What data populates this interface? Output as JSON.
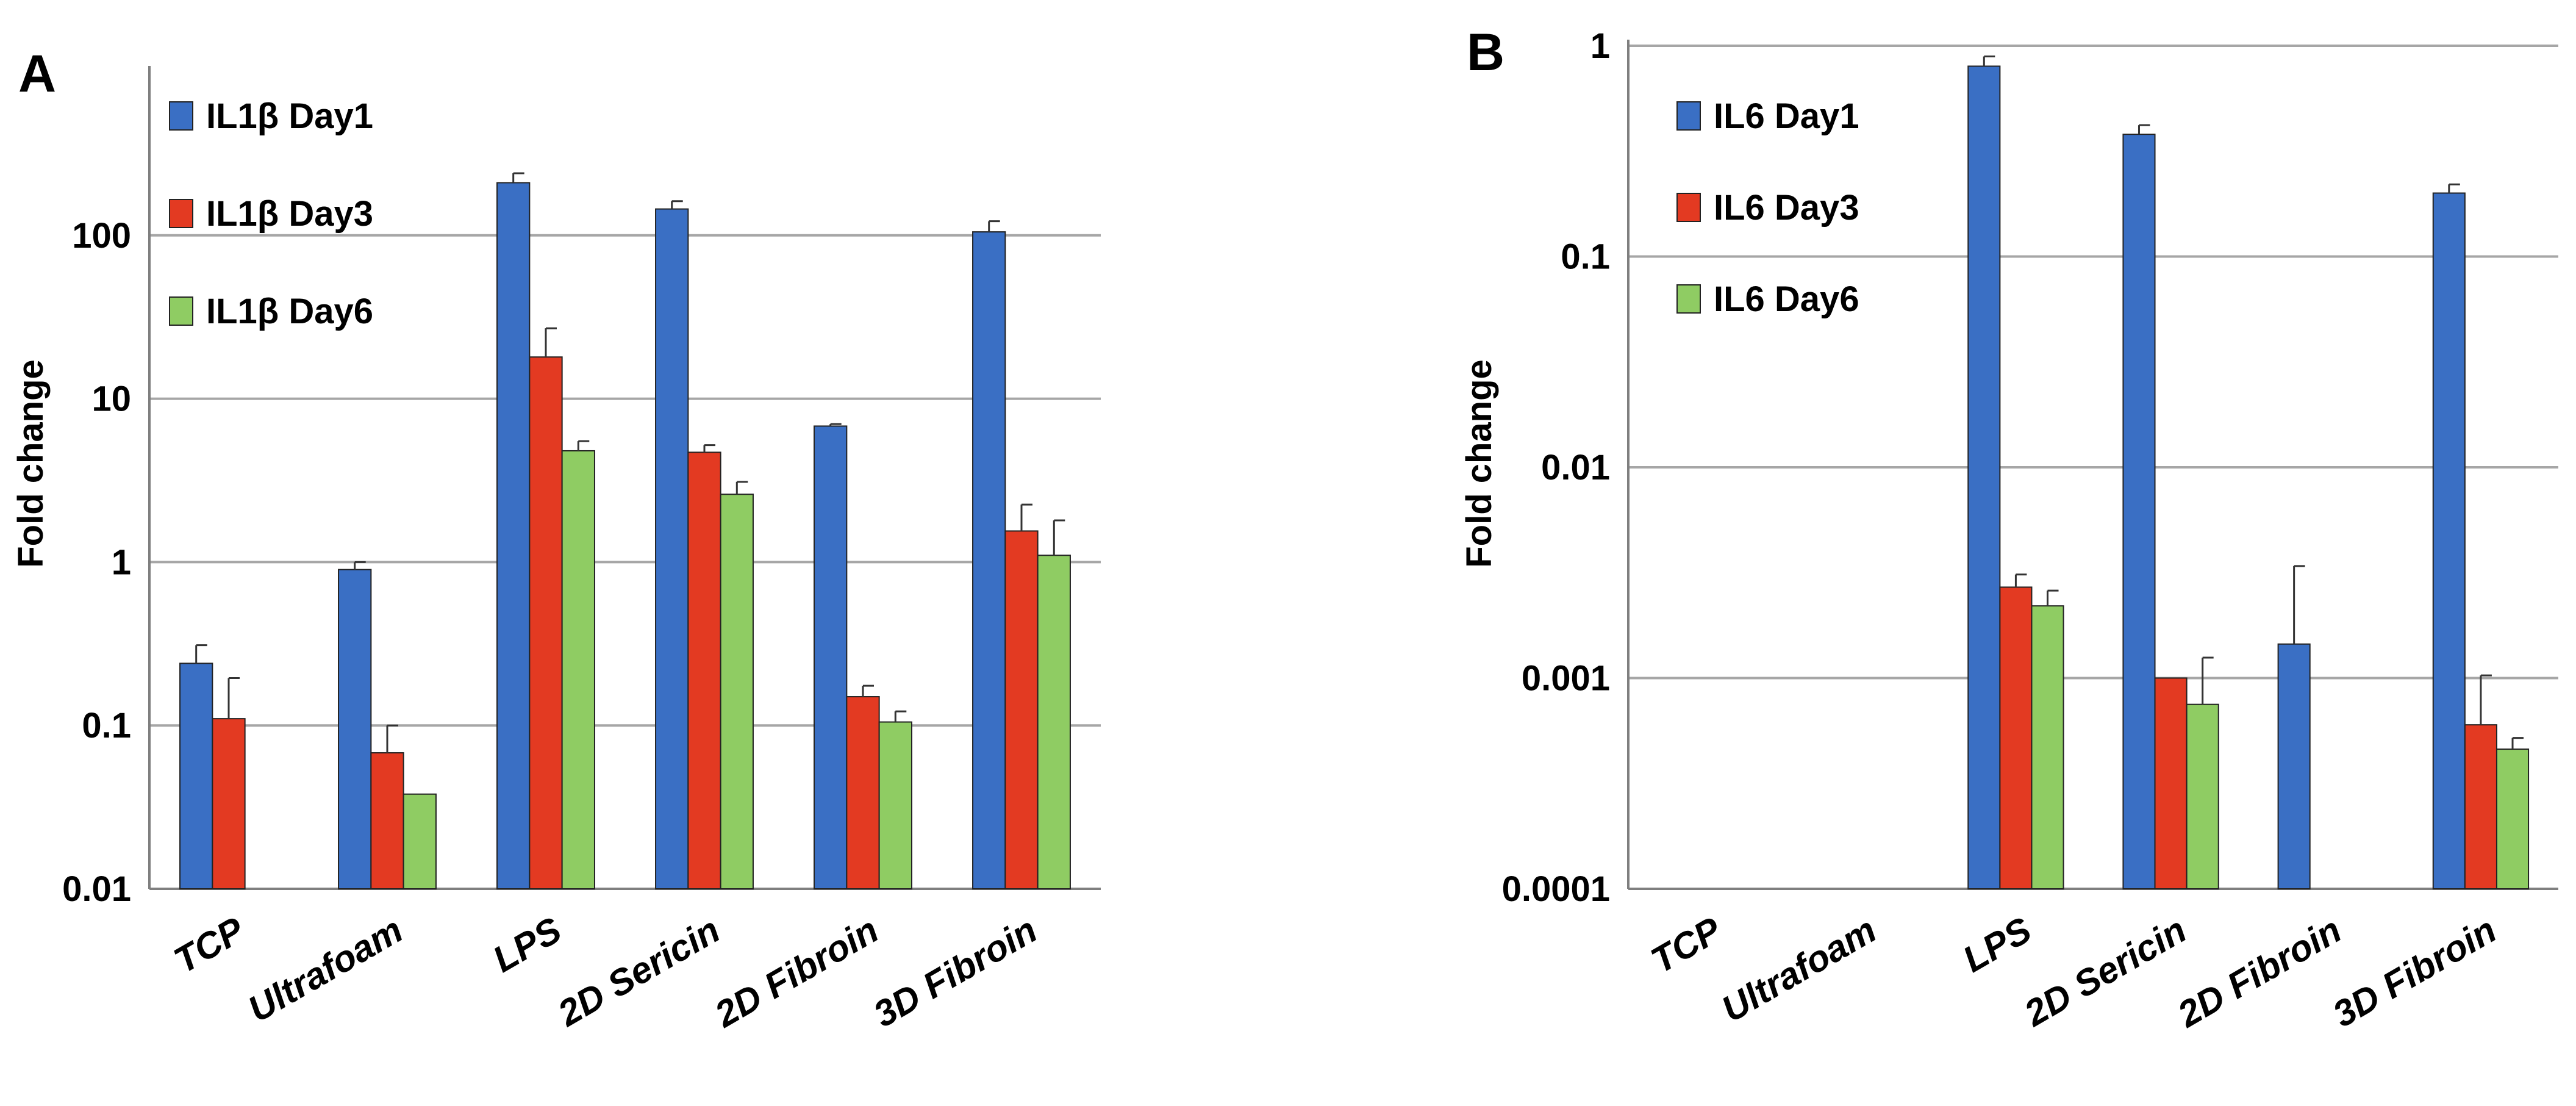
{
  "colors": {
    "day1": "#3a6fc4",
    "day3": "#e33a22",
    "day6": "#8fcc63",
    "gridline": "#a6a6a6",
    "axis": "#7f7f7f"
  },
  "chart_data": [
    {
      "panel": "A",
      "type": "bar",
      "ylabel": "Fold change",
      "yscale": "log",
      "ylim": [
        0.01,
        1000
      ],
      "yticks": [
        "0.01",
        "0.1",
        "1",
        "10",
        "100"
      ],
      "grid": true,
      "legend_position": "top-left",
      "categories": [
        "TCP",
        "Ultrafoam",
        "LPS",
        "2D Sericin",
        "2D Fibroin",
        "3D Fibroin"
      ],
      "series": [
        {
          "name": "IL1β Day1",
          "color": "#3a6fc4",
          "values": [
            0.24,
            0.9,
            210,
            145,
            6.8,
            105
          ],
          "err_upper": [
            0.31,
            1.0,
            240,
            162,
            7.0,
            122
          ]
        },
        {
          "name": "IL1β Day3",
          "color": "#e33a22",
          "values": [
            0.11,
            0.068,
            18,
            4.7,
            0.15,
            1.55
          ],
          "err_upper": [
            0.195,
            0.1,
            27,
            5.2,
            0.175,
            2.25
          ]
        },
        {
          "name": "IL1β Day6",
          "color": "#8fcc63",
          "values": [
            null,
            0.038,
            4.8,
            2.6,
            0.105,
            1.1
          ],
          "err_upper": [
            null,
            null,
            5.5,
            3.1,
            0.122,
            1.8
          ]
        }
      ]
    },
    {
      "panel": "B",
      "type": "bar",
      "ylabel": "Fold change",
      "yscale": "log",
      "ylim": [
        0.0001,
        1
      ],
      "yticks": [
        "0.0001",
        "0.001",
        "0.01",
        "0.1",
        "1"
      ],
      "grid": true,
      "legend_position": "top-left",
      "categories": [
        "TCP",
        "Ultrafoam",
        "LPS",
        "2D Sericin",
        "2D Fibroin",
        "3D Fibroin"
      ],
      "series": [
        {
          "name": "IL6 Day1",
          "color": "#3a6fc4",
          "values": [
            null,
            null,
            0.8,
            0.38,
            0.00145,
            0.2
          ],
          "err_upper": [
            null,
            null,
            0.89,
            0.42,
            0.0034,
            0.22
          ]
        },
        {
          "name": "IL6 Day3",
          "color": "#e33a22",
          "values": [
            null,
            null,
            0.0027,
            0.001,
            null,
            0.0006
          ],
          "err_upper": [
            null,
            null,
            0.0031,
            null,
            null,
            0.00103
          ]
        },
        {
          "name": "IL6 Day6",
          "color": "#8fcc63",
          "values": [
            null,
            null,
            0.0022,
            0.00075,
            null,
            0.00046
          ],
          "err_upper": [
            null,
            null,
            0.0026,
            0.00125,
            null,
            0.00052
          ]
        }
      ]
    }
  ]
}
